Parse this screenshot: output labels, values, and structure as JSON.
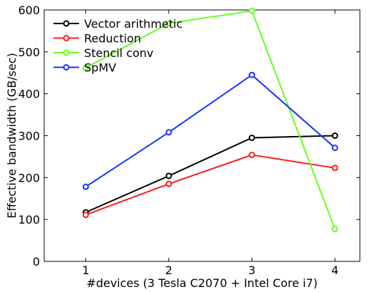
{
  "chart_data": {
    "type": "line",
    "title": "",
    "xlabel": "#devices (3 Tesla C2070 + Intel Core i7)",
    "ylabel": "Effective bandwidth (GB/sec)",
    "x": [
      1,
      2,
      3,
      4
    ],
    "xlim": [
      0.5,
      4.3
    ],
    "ylim": [
      0,
      600
    ],
    "xticks": [
      1,
      2,
      3,
      4
    ],
    "yticks": [
      0,
      100,
      200,
      300,
      400,
      500,
      600
    ],
    "grid": false,
    "legend_position": "top-left",
    "series": [
      {
        "name": "Vector arithmetic",
        "color": "#000000",
        "values": [
          117,
          204,
          295,
          300
        ]
      },
      {
        "name": "Reduction",
        "color": "#ff1a1a",
        "values": [
          111,
          185,
          254,
          223
        ]
      },
      {
        "name": "Stencil conv",
        "color": "#66ff1a",
        "values": [
          462,
          568,
          598,
          77
        ]
      },
      {
        "name": "SpMV",
        "color": "#1a33ff",
        "values": [
          178,
          308,
          445,
          271
        ]
      }
    ]
  }
}
